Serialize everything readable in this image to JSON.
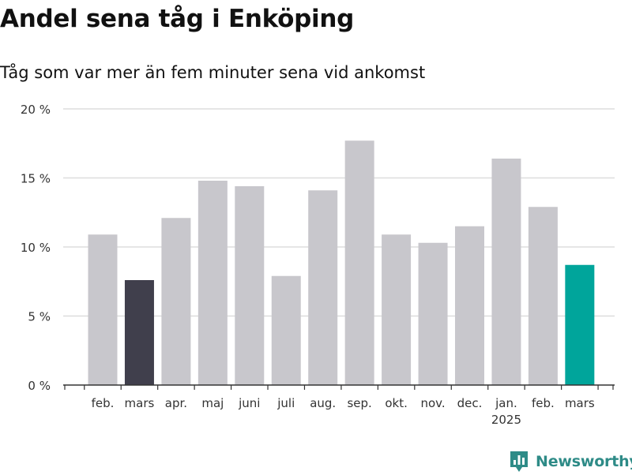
{
  "page": {
    "title": "Andel sena tåg i Enköping",
    "subtitle": "Tåg som var mer än fem minuter sena vid ankomst",
    "brand": "Newsworthy",
    "brand_icon": "newsworthy-logo-icon"
  },
  "chart_data": {
    "type": "bar",
    "title": "Andel sena tåg i Enköping",
    "subtitle": "Tåg som var mer än fem minuter sena vid ankomst",
    "categories": [
      "feb.",
      "mars",
      "apr.",
      "maj",
      "juni",
      "juli",
      "aug.",
      "sep.",
      "okt.",
      "nov.",
      "dec.",
      "jan.",
      "feb.",
      "mars"
    ],
    "category_sublabels": [
      "",
      "",
      "",
      "",
      "",
      "",
      "",
      "",
      "",
      "",
      "",
      "2025",
      "",
      ""
    ],
    "values": [
      10.9,
      7.6,
      12.1,
      14.8,
      14.4,
      7.9,
      14.1,
      17.7,
      10.9,
      10.3,
      11.5,
      16.4,
      12.9,
      8.7
    ],
    "bar_colors": [
      "#c8c7cc",
      "#403f4c",
      "#c8c7cc",
      "#c8c7cc",
      "#c8c7cc",
      "#c8c7cc",
      "#c8c7cc",
      "#c8c7cc",
      "#c8c7cc",
      "#c8c7cc",
      "#c8c7cc",
      "#c8c7cc",
      "#c8c7cc",
      "#00a59b"
    ],
    "ylim": [
      0,
      20
    ],
    "yticks": [
      0,
      5,
      10,
      15,
      20
    ],
    "ytick_labels": [
      "0 %",
      "5 %",
      "10 %",
      "15 %",
      "20 %"
    ],
    "xlabel": "",
    "ylabel": "",
    "grid": true,
    "legend": "none"
  }
}
